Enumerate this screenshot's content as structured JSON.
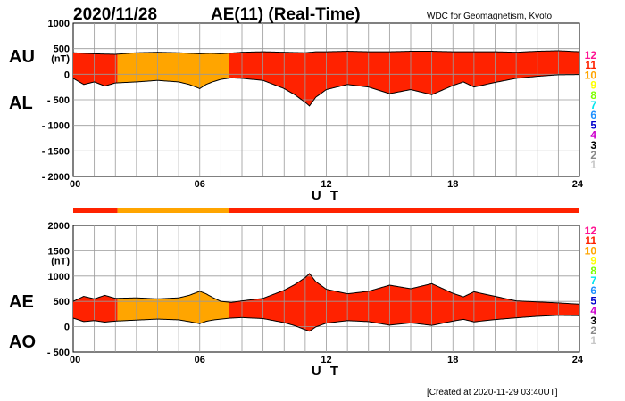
{
  "header": {
    "date": "2020/11/28",
    "title": "AE(11) (Real-Time)",
    "source": "WDC for Geomagnetism, Kyoto"
  },
  "footer": {
    "created": "[Created at 2020-11-29 03:40UT]"
  },
  "legend": {
    "items": [
      {
        "label": "12",
        "color": "#ff1493"
      },
      {
        "label": "11",
        "color": "#ff2200"
      },
      {
        "label": "10",
        "color": "#ffa500"
      },
      {
        "label": "9",
        "color": "#ffff00"
      },
      {
        "label": "8",
        "color": "#7fff00"
      },
      {
        "label": "7",
        "color": "#00e5ee"
      },
      {
        "label": "6",
        "color": "#1e90ff"
      },
      {
        "label": "5",
        "color": "#0000cd"
      },
      {
        "label": "4",
        "color": "#cc00cc"
      },
      {
        "label": "3",
        "color": "#000000"
      },
      {
        "label": "2",
        "color": "#888888"
      },
      {
        "label": "1",
        "color": "#c8c8c8"
      }
    ]
  },
  "station_bar": {
    "segments": [
      {
        "start": 0,
        "end": 2.1,
        "stations": 11
      },
      {
        "start": 2.1,
        "end": 7.4,
        "stations": 10
      },
      {
        "start": 7.4,
        "end": 24,
        "stations": 11
      }
    ]
  },
  "chart_data": [
    {
      "type": "area",
      "panel": "top",
      "labels": {
        "upper": "AU",
        "lower": "AL"
      },
      "unit": "(nT)",
      "xlabel": "U T",
      "xticks": [
        "00",
        "06",
        "12",
        "18",
        "24"
      ],
      "xlim": [
        0,
        24
      ],
      "ylim": [
        -2000,
        1000
      ],
      "yticks": [
        1000,
        500,
        0,
        -500,
        -1000,
        -1500,
        -2000
      ],
      "ytick_labels": [
        "1000",
        "500",
        "0",
        "- 500",
        "- 1000",
        "- 1500",
        "- 2000"
      ],
      "station_coloring": [
        {
          "start": 0,
          "end": 2.1,
          "stations": 11
        },
        {
          "start": 2.1,
          "end": 7.4,
          "stations": 10
        },
        {
          "start": 7.4,
          "end": 24,
          "stations": 11
        }
      ],
      "series": [
        {
          "name": "AU",
          "x": [
            0,
            1,
            2,
            3,
            4,
            5,
            6,
            6.5,
            7,
            8,
            9,
            10,
            11,
            11.5,
            12,
            13,
            14,
            15,
            16,
            17,
            18,
            19,
            20,
            21,
            22,
            23,
            24
          ],
          "values": [
            420,
            400,
            390,
            420,
            430,
            420,
            400,
            410,
            400,
            430,
            440,
            430,
            420,
            440,
            440,
            450,
            440,
            440,
            450,
            450,
            440,
            440,
            440,
            430,
            450,
            460,
            440
          ]
        },
        {
          "name": "AL",
          "x": [
            0,
            0.5,
            1,
            1.5,
            2,
            3,
            4,
            5,
            5.5,
            6,
            6.3,
            6.6,
            7,
            7.5,
            8,
            9,
            10,
            10.5,
            11,
            11.2,
            11.5,
            12,
            13,
            14,
            15,
            16,
            17,
            18,
            18.5,
            19,
            20,
            21,
            22,
            23,
            24
          ],
          "values": [
            -80,
            -200,
            -150,
            -230,
            -170,
            -150,
            -120,
            -150,
            -200,
            -280,
            -200,
            -150,
            -100,
            -70,
            -80,
            -120,
            -280,
            -400,
            -550,
            -620,
            -450,
            -300,
            -200,
            -250,
            -380,
            -300,
            -400,
            -220,
            -150,
            -250,
            -160,
            -80,
            -40,
            -10,
            -5
          ]
        }
      ]
    },
    {
      "type": "area",
      "panel": "bottom",
      "labels": {
        "upper": "AE",
        "lower": "AO"
      },
      "unit": "(nT)",
      "xlabel": "U T",
      "xticks": [
        "00",
        "06",
        "12",
        "18",
        "24"
      ],
      "xlim": [
        0,
        24
      ],
      "ylim": [
        -500,
        2000
      ],
      "yticks": [
        2000,
        1500,
        1000,
        500,
        0,
        -500
      ],
      "ytick_labels": [
        "2000",
        "1500",
        "1000",
        "500",
        "0",
        "- 500"
      ],
      "station_coloring": [
        {
          "start": 0,
          "end": 2.1,
          "stations": 11
        },
        {
          "start": 2.1,
          "end": 7.4,
          "stations": 10
        },
        {
          "start": 7.4,
          "end": 24,
          "stations": 11
        }
      ],
      "series": [
        {
          "name": "AE",
          "x": [
            0,
            0.5,
            1,
            1.5,
            2,
            3,
            4,
            5,
            5.5,
            6,
            6.3,
            6.6,
            7,
            7.5,
            8,
            9,
            10,
            10.5,
            11,
            11.2,
            11.5,
            12,
            13,
            14,
            15,
            16,
            17,
            18,
            18.5,
            19,
            20,
            21,
            22,
            23,
            24
          ],
          "values": [
            500,
            600,
            550,
            620,
            560,
            570,
            550,
            570,
            620,
            700,
            650,
            580,
            500,
            480,
            510,
            560,
            720,
            830,
            970,
            1050,
            890,
            740,
            650,
            700,
            820,
            750,
            850,
            660,
            590,
            690,
            600,
            510,
            490,
            470,
            445
          ]
        },
        {
          "name": "AO",
          "x": [
            0,
            0.5,
            1,
            1.5,
            2,
            3,
            4,
            5,
            5.5,
            6,
            6.3,
            6.6,
            7,
            7.5,
            8,
            9,
            10,
            10.5,
            11,
            11.2,
            11.5,
            12,
            13,
            14,
            15,
            16,
            17,
            18,
            18.5,
            19,
            20,
            21,
            22,
            23,
            24
          ],
          "values": [
            170,
            100,
            120,
            90,
            110,
            130,
            150,
            135,
            100,
            60,
            105,
            130,
            150,
            170,
            180,
            160,
            80,
            20,
            -60,
            -90,
            -5,
            70,
            120,
            100,
            30,
            75,
            25,
            110,
            145,
            95,
            140,
            175,
            205,
            225,
            218
          ]
        }
      ]
    }
  ]
}
